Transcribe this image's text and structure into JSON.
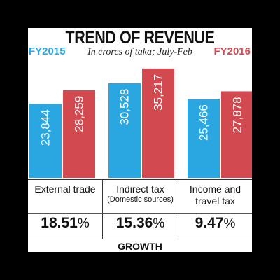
{
  "chart_data": {
    "type": "bar",
    "title": "TREND OF REVENUE",
    "subtitle": "In crores of taka; July-Feb",
    "categories": [
      "External trade",
      "Indirect tax",
      "Income and travel tax"
    ],
    "category_sublabels": [
      "",
      "(Domestic sources)",
      ""
    ],
    "series": [
      {
        "name": "FY2015",
        "color": "#2aa6e0",
        "values": [
          23844,
          30528,
          25466
        ],
        "labels": [
          "23,844",
          "30,528",
          "25,466"
        ]
      },
      {
        "name": "FY2016",
        "color": "#d24a50",
        "values": [
          28259,
          35217,
          27878
        ],
        "labels": [
          "28,259",
          "35,217",
          "27,878"
        ]
      }
    ],
    "growth": {
      "label": "GROWTH",
      "values": [
        "18.51",
        "15.36",
        "9.47"
      ],
      "unit": "%"
    },
    "legend": {
      "FY2015": "top-left",
      "FY2016": "top-right"
    },
    "ylim": [
      0,
      37000
    ],
    "grid": false
  }
}
